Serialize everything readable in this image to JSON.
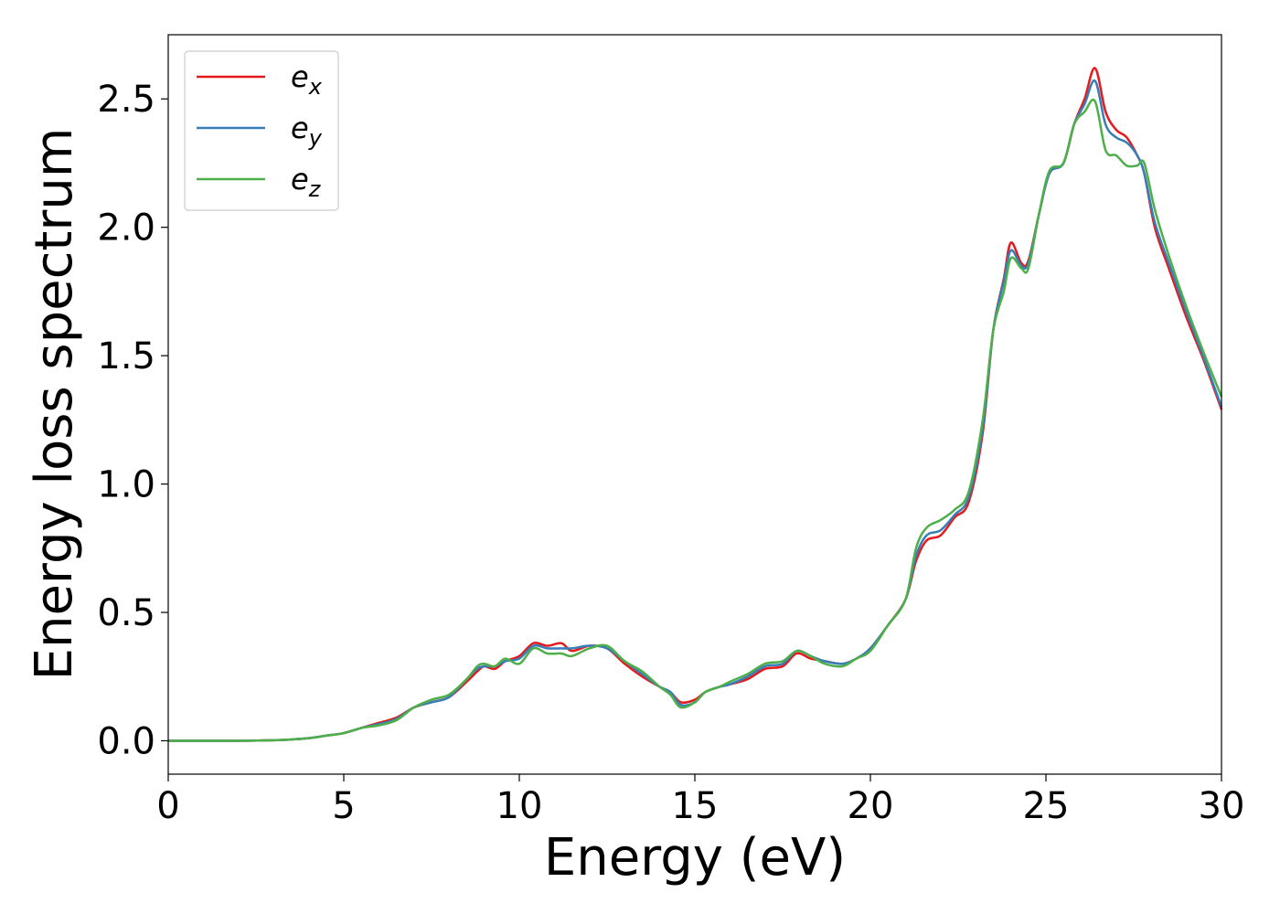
{
  "chart_data": {
    "type": "line",
    "xlabel": "Energy (eV)",
    "ylabel": "Energy loss spectrum",
    "xlim": [
      0,
      30
    ],
    "ylim": [
      -0.13,
      2.75
    ],
    "xticks": [
      0,
      5,
      10,
      15,
      20,
      25,
      30
    ],
    "xtick_labels": [
      "0",
      "5",
      "10",
      "15",
      "20",
      "25",
      "30"
    ],
    "yticks": [
      0.0,
      0.5,
      1.0,
      1.5,
      2.0,
      2.5
    ],
    "ytick_labels": [
      "0.0",
      "0.5",
      "1.0",
      "1.5",
      "2.0",
      "2.5"
    ],
    "grid": false,
    "legend_position": "top-left",
    "x": [
      0,
      1,
      2,
      3,
      3.5,
      4,
      4.5,
      5,
      5.5,
      6,
      6.5,
      7,
      7.5,
      8,
      8.5,
      8.8,
      9,
      9.3,
      9.6,
      10,
      10.4,
      10.8,
      11.2,
      11.5,
      12,
      12.5,
      13,
      13.5,
      14,
      14.3,
      14.6,
      15,
      15.3,
      15.7,
      16,
      16.5,
      17,
      17.5,
      17.9,
      18.3,
      18.7,
      19.2,
      19.6,
      20,
      20.5,
      21,
      21.3,
      21.6,
      22,
      22.4,
      22.8,
      23.2,
      23.5,
      23.8,
      24.0,
      24.3,
      24.5,
      24.8,
      25.1,
      25.5,
      25.8,
      26.1,
      26.4,
      26.7,
      27.0,
      27.3,
      27.6,
      27.8,
      28.1,
      28.5,
      29,
      29.5,
      30
    ],
    "series": [
      {
        "name": "e_x",
        "label_base": "e",
        "label_sub": "x",
        "color": "#e41a1c",
        "values": [
          0,
          0,
          0,
          0.002,
          0.005,
          0.01,
          0.02,
          0.03,
          0.05,
          0.07,
          0.09,
          0.13,
          0.15,
          0.17,
          0.23,
          0.27,
          0.29,
          0.28,
          0.31,
          0.33,
          0.38,
          0.37,
          0.38,
          0.35,
          0.37,
          0.36,
          0.3,
          0.25,
          0.21,
          0.19,
          0.15,
          0.16,
          0.19,
          0.21,
          0.22,
          0.24,
          0.28,
          0.29,
          0.34,
          0.32,
          0.31,
          0.3,
          0.32,
          0.36,
          0.45,
          0.55,
          0.7,
          0.78,
          0.8,
          0.87,
          0.93,
          1.2,
          1.6,
          1.8,
          1.94,
          1.86,
          1.87,
          2.05,
          2.21,
          2.25,
          2.4,
          2.5,
          2.62,
          2.45,
          2.38,
          2.35,
          2.28,
          2.21,
          2.0,
          1.84,
          1.65,
          1.48,
          1.29
        ]
      },
      {
        "name": "e_y",
        "label_base": "e",
        "label_sub": "y",
        "color": "#377eb8",
        "values": [
          0,
          0,
          0,
          0.002,
          0.005,
          0.01,
          0.02,
          0.03,
          0.05,
          0.065,
          0.085,
          0.13,
          0.15,
          0.17,
          0.24,
          0.28,
          0.29,
          0.29,
          0.31,
          0.32,
          0.37,
          0.36,
          0.36,
          0.36,
          0.37,
          0.36,
          0.31,
          0.26,
          0.21,
          0.19,
          0.14,
          0.15,
          0.19,
          0.21,
          0.22,
          0.25,
          0.29,
          0.3,
          0.35,
          0.33,
          0.31,
          0.3,
          0.32,
          0.36,
          0.45,
          0.55,
          0.72,
          0.8,
          0.82,
          0.88,
          0.95,
          1.22,
          1.6,
          1.79,
          1.91,
          1.85,
          1.86,
          2.05,
          2.21,
          2.25,
          2.4,
          2.48,
          2.57,
          2.4,
          2.35,
          2.33,
          2.28,
          2.21,
          2.02,
          1.86,
          1.67,
          1.49,
          1.3
        ]
      },
      {
        "name": "e_z",
        "label_base": "e",
        "label_sub": "z",
        "color": "#4daf4a",
        "values": [
          0,
          0,
          0,
          0.002,
          0.005,
          0.01,
          0.02,
          0.03,
          0.05,
          0.06,
          0.08,
          0.13,
          0.16,
          0.18,
          0.24,
          0.29,
          0.3,
          0.29,
          0.32,
          0.3,
          0.36,
          0.34,
          0.34,
          0.33,
          0.36,
          0.37,
          0.31,
          0.27,
          0.21,
          0.18,
          0.13,
          0.15,
          0.19,
          0.21,
          0.23,
          0.26,
          0.3,
          0.31,
          0.35,
          0.33,
          0.3,
          0.29,
          0.32,
          0.35,
          0.45,
          0.55,
          0.75,
          0.83,
          0.86,
          0.9,
          0.97,
          1.25,
          1.6,
          1.75,
          1.88,
          1.84,
          1.84,
          2.05,
          2.22,
          2.25,
          2.4,
          2.45,
          2.49,
          2.3,
          2.28,
          2.24,
          2.24,
          2.25,
          2.07,
          1.89,
          1.69,
          1.51,
          1.34
        ]
      }
    ]
  }
}
